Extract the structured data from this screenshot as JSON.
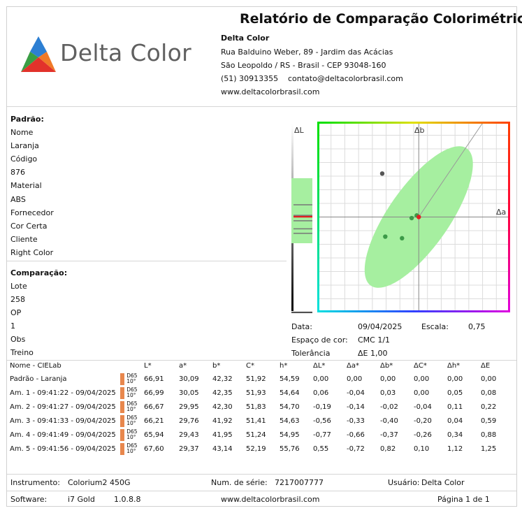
{
  "header": {
    "title": "Relatório de Comparação Colorimétrica",
    "logo_text": "Delta Color",
    "company": "Delta Color",
    "address": "Rua Balduino Weber, 89 - Jardim das Acácias",
    "city": "São Leopoldo / RS - Brasil - CEP 93048-160",
    "phone": "(51) 30913355",
    "email": "contato@deltacolorbrasil.com",
    "website": "www.deltacolorbrasil.com",
    "colors": {
      "logo_green": "#3a9e44",
      "logo_blue": "#2d7fd3",
      "logo_orange": "#f07a28",
      "logo_red": "#e2322b"
    }
  },
  "standard": {
    "section_label": "Padrão:",
    "fields": [
      {
        "label": "Nome",
        "value": "Laranja"
      },
      {
        "label": "Código",
        "value": "876"
      },
      {
        "label": "Material",
        "value": "ABS"
      },
      {
        "label": "Fornecedor",
        "value": "Cor Certa"
      },
      {
        "label": "Cliente",
        "value": "Right Color"
      }
    ]
  },
  "comparison": {
    "section_label": "Comparação:",
    "fields": [
      {
        "label": "Lote",
        "value": "258"
      },
      {
        "label": "OP",
        "value": "1"
      },
      {
        "label": "Obs",
        "value": "Treino"
      }
    ]
  },
  "chart_data": {
    "type": "scatter",
    "axis_labels": {
      "delta_L": "ΔL",
      "delta_a": "Δa",
      "delta_b": "Δb"
    },
    "xlim": [
      -2.0,
      1.8
    ],
    "ylim": [
      -1.8,
      1.8
    ],
    "grid": true,
    "tolerance_ellipse": {
      "center": [
        0,
        0
      ],
      "semi_major": 1.65,
      "semi_minor": 0.6,
      "angle_deg": 55,
      "color": "#a6efa0"
    },
    "points": [
      {
        "name": "Padrão - Laranja",
        "da": 0.0,
        "db": 0.0,
        "dL": 0.0,
        "color": "#e02020"
      },
      {
        "name": "Am. 1",
        "da": -0.04,
        "db": 0.03,
        "dL": 0.06,
        "color": "#3c9a48"
      },
      {
        "name": "Am. 2",
        "da": -0.14,
        "db": -0.02,
        "dL": -0.19,
        "color": "#3c9a48"
      },
      {
        "name": "Am. 3",
        "da": -0.33,
        "db": -0.4,
        "dL": -0.56,
        "color": "#3c9a48"
      },
      {
        "name": "Am. 4",
        "da": -0.66,
        "db": -0.37,
        "dL": -0.77,
        "color": "#3c9a48"
      },
      {
        "name": "Am. 5",
        "da": -0.72,
        "db": 0.82,
        "dL": 0.55,
        "color": "#555555"
      }
    ]
  },
  "chart_info": {
    "date_label": "Data:",
    "date_value": "09/04/2025",
    "scale_label": "Escala:",
    "scale_value": "0,75",
    "space_label": "Espaço de cor:",
    "space_value": "CMC 1/1",
    "tolerance_label": "Tolerância",
    "tolerance_value": "ΔE 1,00"
  },
  "table": {
    "headers": [
      "Nome - CIELab",
      "",
      "L*",
      "a*",
      "b*",
      "C*",
      "h*",
      "ΔL*",
      "Δa*",
      "Δb*",
      "ΔC*",
      "Δh*",
      "ΔE"
    ],
    "illuminant": [
      "D65",
      "10°"
    ],
    "swatch_color": "#e8874d",
    "rows": [
      [
        "Padrão - Laranja",
        "66,91",
        "30,09",
        "42,32",
        "51,92",
        "54,59",
        "0,00",
        "0,00",
        "0,00",
        "0,00",
        "0,00",
        "0,00"
      ],
      [
        "Am. 1 - 09:41:22 - 09/04/2025",
        "66,99",
        "30,05",
        "42,35",
        "51,93",
        "54,64",
        "0,06",
        "-0,04",
        "0,03",
        "0,00",
        "0,05",
        "0,08"
      ],
      [
        "Am. 2 - 09:41:27 - 09/04/2025",
        "66,67",
        "29,95",
        "42,30",
        "51,83",
        "54,70",
        "-0,19",
        "-0,14",
        "-0,02",
        "-0,04",
        "0,11",
        "0,22"
      ],
      [
        "Am. 3 - 09:41:33 - 09/04/2025",
        "66,21",
        "29,76",
        "41,92",
        "51,41",
        "54,63",
        "-0,56",
        "-0,33",
        "-0,40",
        "-0,20",
        "0,04",
        "0,59"
      ],
      [
        "Am. 4 - 09:41:49 - 09/04/2025",
        "65,94",
        "29,43",
        "41,95",
        "51,24",
        "54,95",
        "-0,77",
        "-0,66",
        "-0,37",
        "-0,26",
        "0,34",
        "0,88"
      ],
      [
        "Am. 5 - 09:41:56 - 09/04/2025",
        "67,60",
        "29,37",
        "43,14",
        "52,19",
        "55,76",
        "0,55",
        "-0,72",
        "0,82",
        "0,10",
        "1,12",
        "1,25"
      ]
    ]
  },
  "footer": {
    "instrument_label": "Instrumento:",
    "instrument_value": "Colorium2 450G",
    "serial_label": "Num. de série:",
    "serial_value": "7217007777",
    "user_label": "Usuário:",
    "user_value": "Delta Color",
    "software_label": "Software:",
    "software_name": "i7 Gold",
    "software_version": "1.0.8.8",
    "website": "www.deltacolorbrasil.com",
    "page": "Página 1 de 1"
  }
}
